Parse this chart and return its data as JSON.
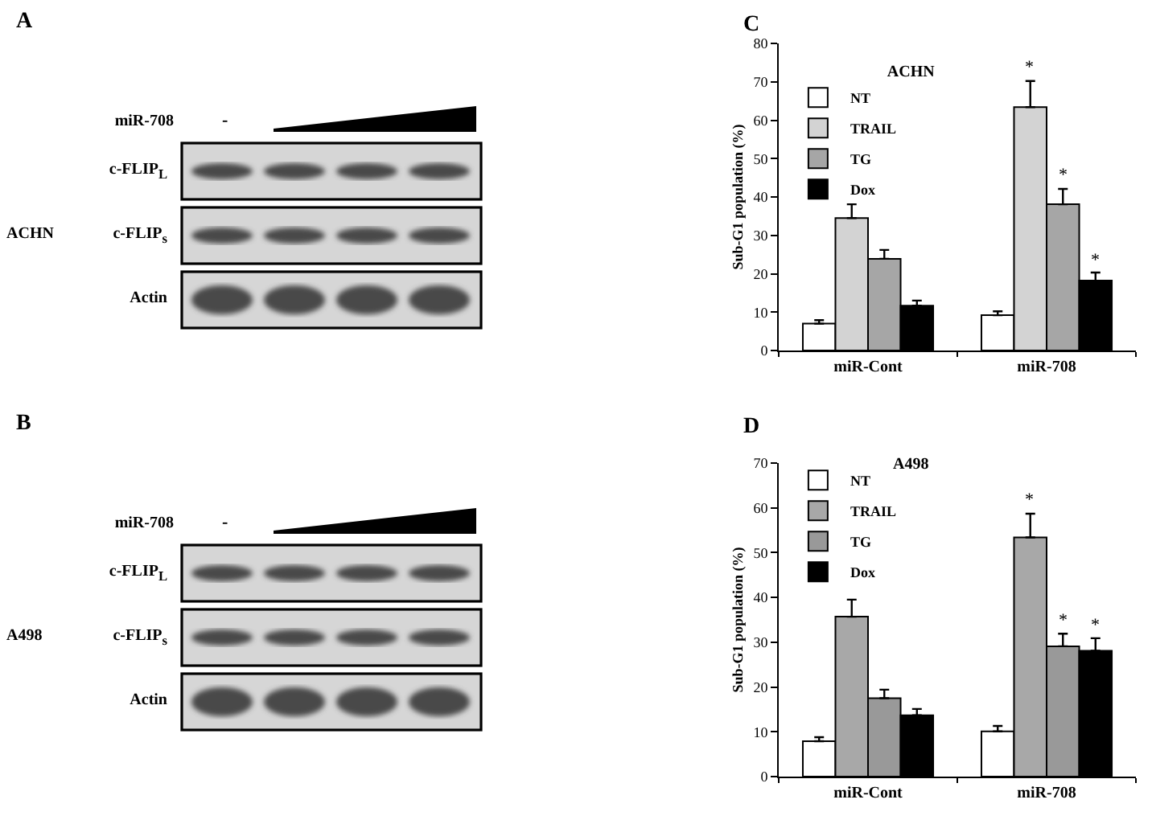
{
  "chart_data": [
    {
      "type": "other",
      "annotations": [
        "A",
        "-"
      ],
      "xlabel": "miR-708",
      "ylabel": "ACHN",
      "categories": [
        "c-FLIP$_{L}$",
        "c-FLIP$_{s}$",
        "Actin"
      ]
    },
    {
      "type": "bar",
      "title": "ACHN",
      "ylabel": "Sub-G1 population (%)",
      "annotations": [
        "C"
      ],
      "categories": [
        "miR-Cont",
        "miR-708"
      ],
      "series": [
        {
          "name": "NT",
          "color": "#ffffff",
          "values": [
            7,
            9.2
          ],
          "errors": [
            [
              7,
              7.9
            ],
            [
              9.2,
              10.2
            ]
          ]
        },
        {
          "name": "TRAIL",
          "color": "#d3d3d3",
          "values": [
            34.5,
            63.4
          ],
          "errors": [
            [
              34.5,
              38.1
            ],
            [
              63.4,
              70.2
            ]
          ],
          "value_labels": [
            null,
            "*"
          ]
        },
        {
          "name": "TG",
          "color": "#a6a6a6",
          "values": [
            23.9,
            38.1
          ],
          "errors": [
            [
              23.9,
              26.2
            ],
            [
              38.1,
              42.1
            ]
          ],
          "value_labels": [
            null,
            "*"
          ]
        },
        {
          "name": "Dox",
          "color": "#000000",
          "values": [
            11.7,
            18.2
          ],
          "errors": [
            [
              11.7,
              13
            ],
            [
              18.2,
              20.3
            ]
          ],
          "value_labels": [
            null,
            "*"
          ]
        }
      ],
      "ylim": [
        0,
        80
      ],
      "yticks": [
        0,
        10,
        20,
        30,
        40,
        50,
        60,
        70,
        80
      ],
      "grid": false,
      "legend": "top left"
    },
    {
      "type": "other",
      "annotations": [
        "B",
        "-"
      ],
      "xlabel": "miR-708",
      "ylabel": "A498",
      "categories": [
        "c-FLIP$_{L}$",
        "c-FLIP$_{s}$",
        "Actin"
      ]
    },
    {
      "type": "bar",
      "title": "A498",
      "ylabel": "Sub-G1 population (%)",
      "annotations": [
        "D"
      ],
      "categories": [
        "miR-Cont",
        "miR-708"
      ],
      "series": [
        {
          "name": "NT",
          "color": "#ffffff",
          "values": [
            7.9,
            10.1
          ],
          "errors": [
            [
              7.9,
              8.8
            ],
            [
              10.1,
              11.3
            ]
          ]
        },
        {
          "name": "TRAIL",
          "color": "#a8a8a8",
          "values": [
            35.7,
            53.4
          ],
          "errors": [
            [
              35.7,
              39.5
            ],
            [
              53.4,
              58.7
            ]
          ],
          "value_labels": [
            null,
            "*"
          ]
        },
        {
          "name": "TG",
          "color": "#999999",
          "values": [
            17.5,
            29.1
          ],
          "errors": [
            [
              17.5,
              19.4
            ],
            [
              29.1,
              31.9
            ]
          ],
          "value_labels": [
            null,
            "*"
          ]
        },
        {
          "name": "Dox",
          "color": "#000000",
          "values": [
            13.7,
            28.1
          ],
          "errors": [
            [
              13.7,
              15.1
            ],
            [
              28.1,
              30.9
            ]
          ],
          "value_labels": [
            null,
            "*"
          ]
        }
      ],
      "ylim": [
        0,
        70
      ],
      "yticks": [
        0,
        10,
        20,
        30,
        40,
        50,
        60,
        70
      ],
      "grid": false,
      "legend": "top left"
    }
  ]
}
